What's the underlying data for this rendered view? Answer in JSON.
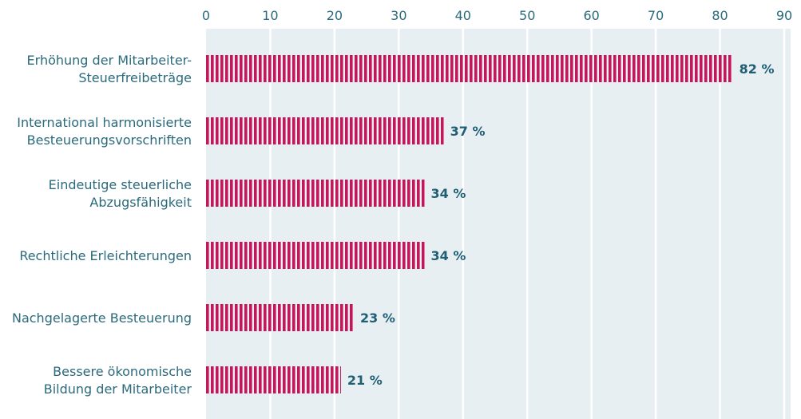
{
  "chart_data": {
    "type": "bar",
    "orientation": "horizontal",
    "categories": [
      [
        "Erhöhung der Mitarbeiter-",
        "Steuerfreibeträge"
      ],
      [
        "International harmonisierte",
        "Besteuerungsvorschriften"
      ],
      [
        "Eindeutige steuerliche",
        "Abzugsfähigkeit"
      ],
      [
        "Rechtliche Erleichterungen"
      ],
      [
        "Nachgelagerte Besteuerung"
      ],
      [
        "Bessere ökonomische",
        "Bildung der Mitarbeiter"
      ]
    ],
    "values": [
      82,
      37,
      34,
      34,
      23,
      21
    ],
    "value_labels": [
      "82 %",
      "37 %",
      "34 %",
      "34 %",
      "23 %",
      "21 %"
    ],
    "x_ticks": [
      "0",
      "10",
      "20",
      "30",
      "40",
      "50",
      "60",
      "70",
      "80",
      "90"
    ],
    "xlim": [
      0,
      90
    ],
    "axis_position": "top",
    "grid": true,
    "colors": {
      "bar": "#c2185b",
      "plot_background": "#e8eff3",
      "gridline": "#ffffff",
      "text": "#2a6a7c",
      "value_text": "#1f5f73"
    }
  }
}
